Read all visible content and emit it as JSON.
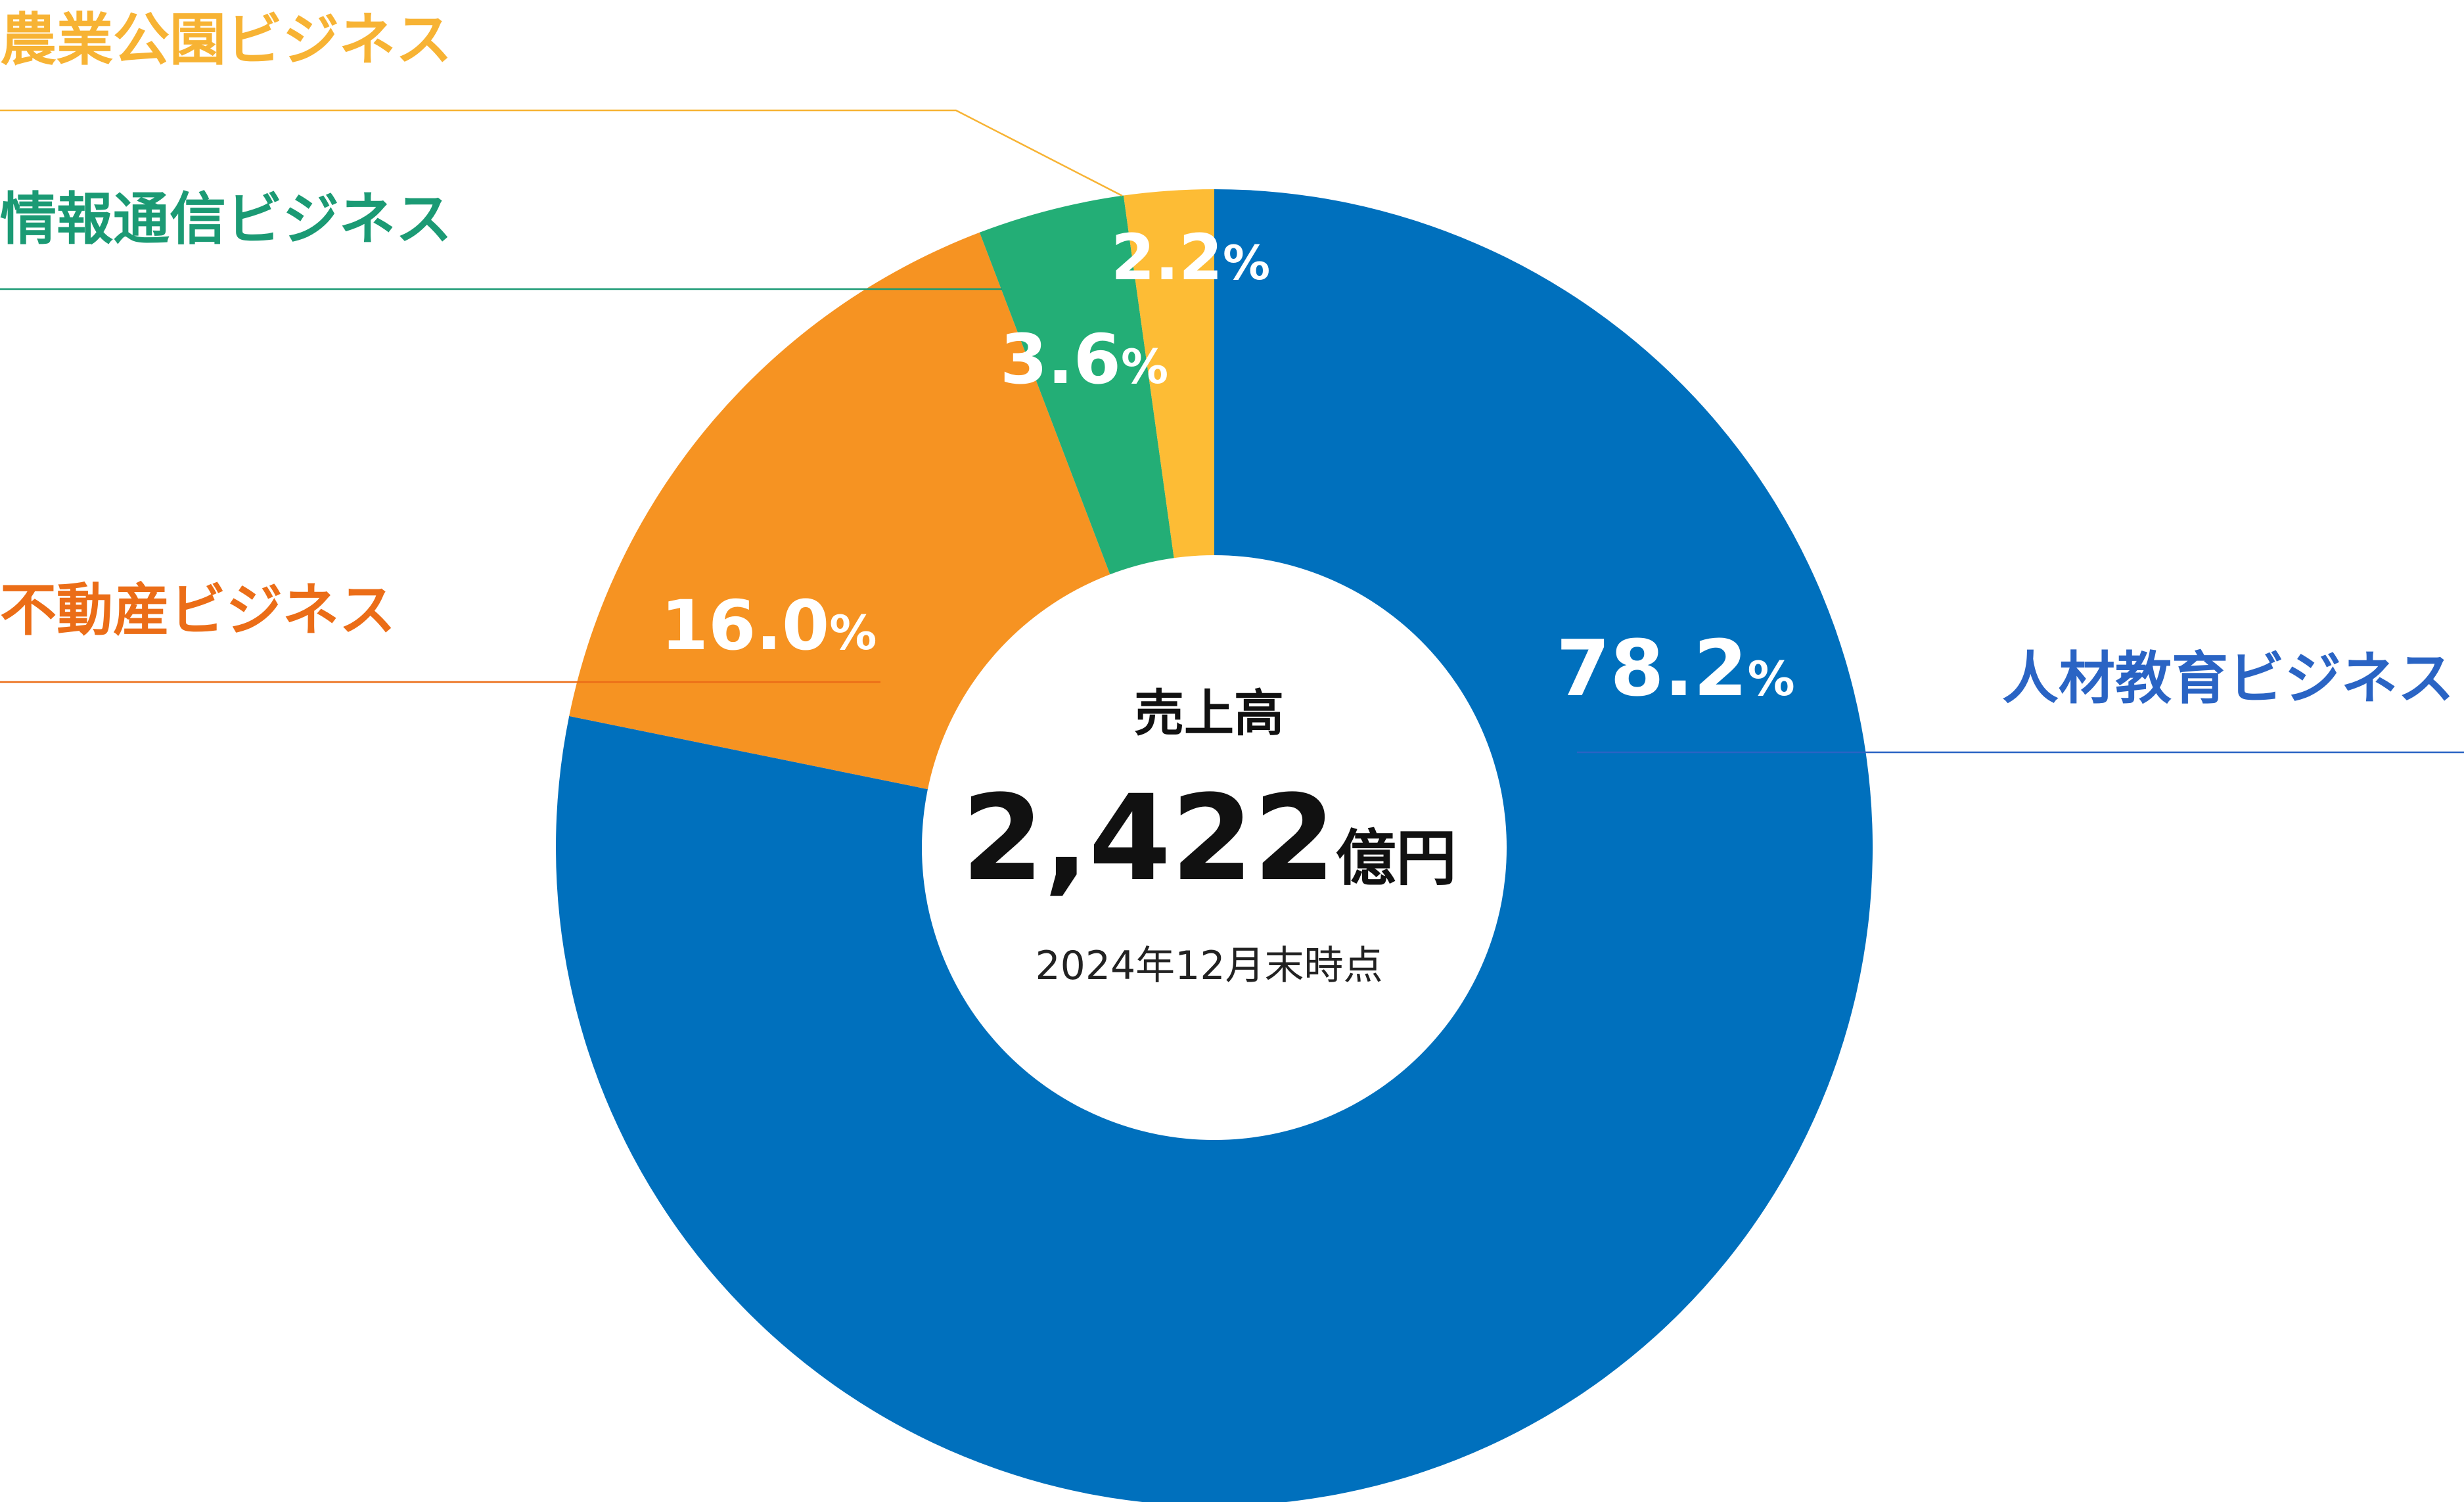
{
  "chart_data": {
    "type": "pie",
    "variant": "donut",
    "categories": [
      "人材教育ビジネス",
      "不動産ビジネス",
      "情報通信ビジネス",
      "農業公園ビジネス"
    ],
    "values": [
      78.2,
      16.0,
      3.6,
      2.2
    ],
    "value_labels": [
      "78.2",
      "16.0",
      "3.6",
      "2.2"
    ],
    "value_suffix": "%",
    "colors": [
      "#0070BD",
      "#F69322",
      "#23AE76",
      "#FDBC35"
    ],
    "label_colors": [
      "#2A64C4",
      "#EB6D17",
      "#1B9A74",
      "#F7B334"
    ],
    "center": {
      "title": "売上高",
      "value": "2,422",
      "unit": "億円",
      "note": "2024年12月末時点"
    }
  }
}
